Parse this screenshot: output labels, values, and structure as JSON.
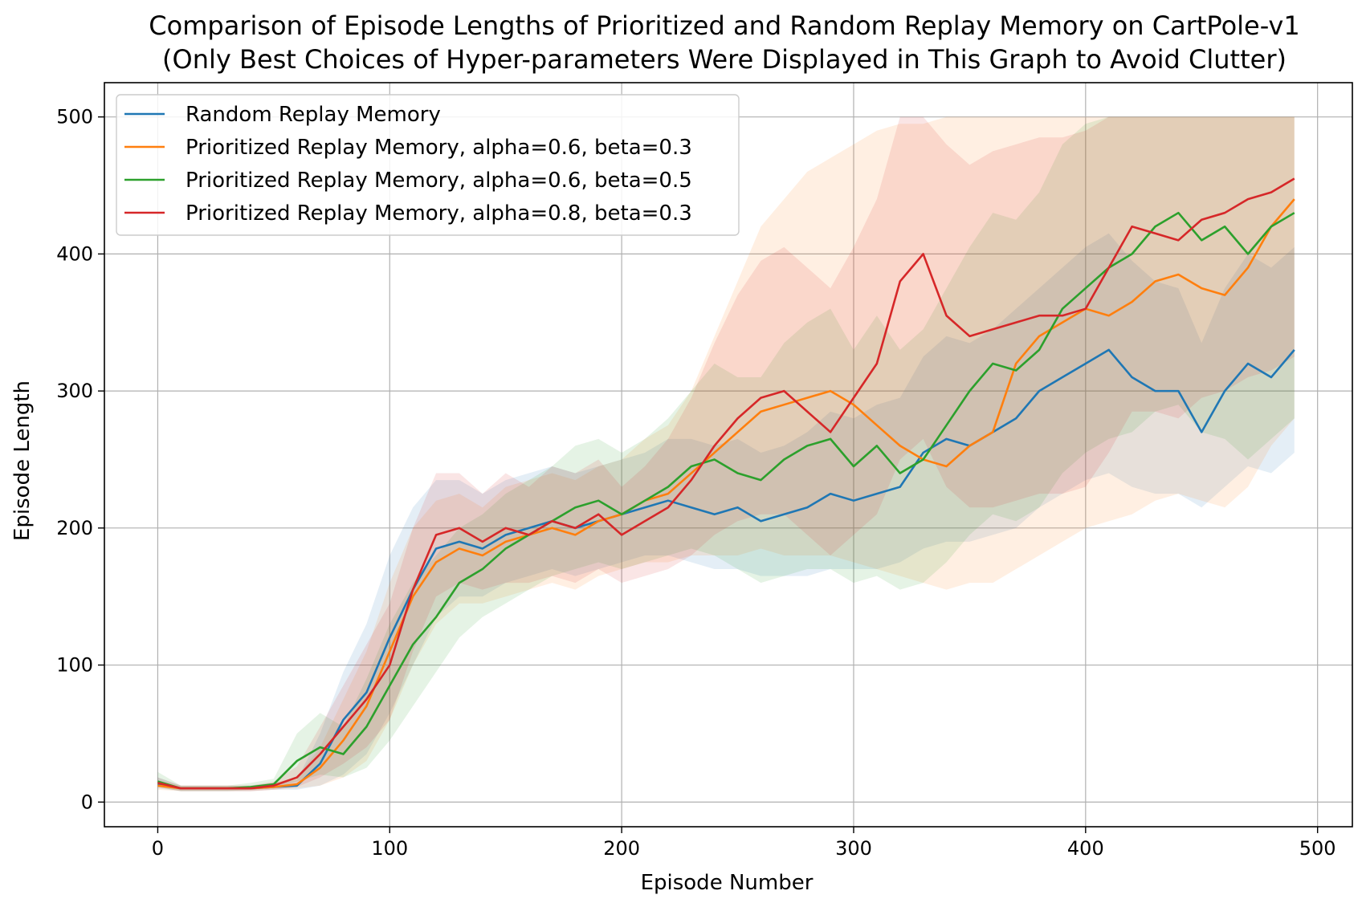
{
  "chart_data": {
    "type": "line",
    "title": "Comparison of Episode Lengths of Prioritized and Random Replay Memory on CartPole-v1",
    "subtitle": "(Only Best Choices of Hyper-parameters Were Displayed in This Graph to Avoid Clutter)",
    "xlabel": "Episode Number",
    "ylabel": "Episode Length",
    "xlim": [
      -23,
      515
    ],
    "ylim": [
      -18,
      525
    ],
    "xticks": [
      0,
      100,
      200,
      300,
      400,
      500
    ],
    "yticks": [
      0,
      100,
      200,
      300,
      400,
      500
    ],
    "grid": true,
    "legend_position": "upper-left",
    "colors": {
      "Random Replay Memory": "#1f77b4",
      "Prioritized Replay Memory, alpha=0.6, beta=0.3": "#ff7f0e",
      "Prioritized Replay Memory, alpha=0.6, beta=0.5": "#2ca02c",
      "Prioritized Replay Memory, alpha=0.8, beta=0.3": "#d62728"
    },
    "series": [
      {
        "name": "Random Replay Memory",
        "x": [
          0,
          10,
          20,
          30,
          40,
          50,
          60,
          70,
          80,
          90,
          100,
          110,
          120,
          130,
          140,
          150,
          160,
          170,
          180,
          190,
          200,
          210,
          220,
          230,
          240,
          250,
          260,
          270,
          280,
          290,
          300,
          310,
          320,
          330,
          340,
          350,
          360,
          370,
          380,
          390,
          400,
          410,
          420,
          430,
          440,
          450,
          460,
          470,
          480,
          490
        ],
        "y": [
          13,
          10,
          10,
          10,
          10,
          11,
          12,
          28,
          60,
          80,
          120,
          155,
          185,
          190,
          185,
          195,
          200,
          205,
          200,
          205,
          210,
          215,
          220,
          215,
          210,
          215,
          205,
          210,
          215,
          225,
          220,
          225,
          230,
          255,
          265,
          260,
          270,
          280,
          300,
          310,
          320,
          330,
          310,
          300,
          300,
          270,
          300,
          320,
          310,
          330
        ],
        "lower": [
          10,
          8,
          8,
          8,
          8,
          9,
          9,
          12,
          20,
          35,
          65,
          100,
          135,
          150,
          150,
          160,
          165,
          170,
          165,
          170,
          175,
          180,
          180,
          175,
          170,
          170,
          165,
          165,
          165,
          170,
          170,
          170,
          175,
          185,
          190,
          190,
          195,
          200,
          215,
          225,
          235,
          240,
          230,
          225,
          225,
          215,
          230,
          245,
          240,
          255
        ],
        "upper": [
          18,
          12,
          12,
          12,
          12,
          14,
          16,
          50,
          95,
          130,
          180,
          215,
          235,
          235,
          225,
          235,
          240,
          245,
          240,
          245,
          250,
          255,
          265,
          265,
          260,
          265,
          255,
          260,
          270,
          285,
          280,
          290,
          295,
          325,
          340,
          335,
          345,
          360,
          375,
          390,
          405,
          415,
          395,
          380,
          375,
          335,
          375,
          400,
          390,
          405
        ]
      },
      {
        "name": "Prioritized Replay Memory, alpha=0.6, beta=0.3",
        "x": [
          0,
          10,
          20,
          30,
          40,
          50,
          60,
          70,
          80,
          90,
          100,
          110,
          120,
          130,
          140,
          150,
          160,
          170,
          180,
          190,
          200,
          210,
          220,
          230,
          240,
          250,
          260,
          270,
          280,
          290,
          300,
          310,
          320,
          330,
          340,
          350,
          360,
          370,
          380,
          390,
          400,
          410,
          420,
          430,
          440,
          450,
          460,
          470,
          480,
          490
        ],
        "y": [
          12,
          10,
          10,
          10,
          10,
          11,
          13,
          25,
          45,
          70,
          110,
          150,
          175,
          185,
          180,
          190,
          195,
          200,
          195,
          205,
          210,
          220,
          225,
          240,
          255,
          270,
          285,
          290,
          295,
          300,
          290,
          275,
          260,
          250,
          245,
          260,
          270,
          320,
          340,
          350,
          360,
          355,
          365,
          380,
          385,
          375,
          370,
          390,
          420,
          440
        ],
        "lower": [
          9,
          8,
          8,
          8,
          8,
          9,
          10,
          12,
          18,
          30,
          60,
          100,
          130,
          145,
          145,
          150,
          155,
          160,
          155,
          165,
          170,
          175,
          175,
          180,
          180,
          180,
          185,
          180,
          180,
          180,
          175,
          170,
          165,
          160,
          155,
          160,
          160,
          170,
          180,
          190,
          200,
          205,
          210,
          220,
          225,
          220,
          215,
          230,
          260,
          280
        ],
        "upper": [
          16,
          12,
          12,
          12,
          12,
          14,
          18,
          40,
          75,
          110,
          160,
          200,
          220,
          225,
          215,
          230,
          235,
          240,
          235,
          245,
          250,
          265,
          275,
          300,
          340,
          380,
          420,
          440,
          460,
          470,
          480,
          490,
          495,
          495,
          500,
          500,
          500,
          500,
          500,
          500,
          500,
          500,
          500,
          500,
          500,
          500,
          500,
          500,
          500,
          500
        ]
      },
      {
        "name": "Prioritized Replay Memory, alpha=0.6, beta=0.5",
        "x": [
          0,
          10,
          20,
          30,
          40,
          50,
          60,
          70,
          80,
          90,
          100,
          110,
          120,
          130,
          140,
          150,
          160,
          170,
          180,
          190,
          200,
          210,
          220,
          230,
          240,
          250,
          260,
          270,
          280,
          290,
          300,
          310,
          320,
          330,
          340,
          350,
          360,
          370,
          380,
          390,
          400,
          410,
          420,
          430,
          440,
          450,
          460,
          470,
          480,
          490
        ],
        "y": [
          15,
          10,
          10,
          10,
          11,
          13,
          30,
          40,
          35,
          55,
          85,
          115,
          135,
          160,
          170,
          185,
          195,
          205,
          215,
          220,
          210,
          220,
          230,
          245,
          250,
          240,
          235,
          250,
          260,
          265,
          245,
          260,
          240,
          250,
          275,
          300,
          320,
          315,
          330,
          360,
          375,
          390,
          400,
          420,
          430,
          410,
          420,
          400,
          420,
          430
        ],
        "lower": [
          11,
          8,
          8,
          8,
          9,
          10,
          15,
          20,
          18,
          25,
          45,
          70,
          95,
          120,
          135,
          145,
          155,
          165,
          170,
          175,
          170,
          175,
          180,
          185,
          180,
          170,
          160,
          165,
          170,
          170,
          160,
          165,
          155,
          160,
          175,
          195,
          210,
          205,
          215,
          240,
          255,
          265,
          270,
          285,
          290,
          270,
          265,
          250,
          265,
          280
        ],
        "upper": [
          22,
          12,
          12,
          12,
          14,
          17,
          50,
          65,
          55,
          90,
          130,
          160,
          180,
          200,
          210,
          225,
          235,
          245,
          260,
          265,
          255,
          265,
          280,
          300,
          320,
          310,
          310,
          335,
          350,
          360,
          330,
          355,
          330,
          345,
          375,
          405,
          430,
          425,
          445,
          480,
          495,
          500,
          500,
          500,
          500,
          500,
          500,
          500,
          500,
          500
        ]
      },
      {
        "name": "Prioritized Replay Memory, alpha=0.8, beta=0.3",
        "x": [
          0,
          10,
          20,
          30,
          40,
          50,
          60,
          70,
          80,
          90,
          100,
          110,
          120,
          130,
          140,
          150,
          160,
          170,
          180,
          190,
          200,
          210,
          220,
          230,
          240,
          250,
          260,
          270,
          280,
          290,
          300,
          310,
          320,
          330,
          340,
          350,
          360,
          370,
          380,
          390,
          400,
          410,
          420,
          430,
          440,
          450,
          460,
          470,
          480,
          490
        ],
        "y": [
          14,
          10,
          10,
          10,
          10,
          12,
          18,
          35,
          55,
          75,
          100,
          155,
          195,
          200,
          190,
          200,
          195,
          205,
          200,
          210,
          195,
          205,
          215,
          235,
          260,
          280,
          295,
          300,
          285,
          270,
          295,
          320,
          380,
          400,
          355,
          340,
          345,
          350,
          355,
          355,
          360,
          390,
          420,
          415,
          410,
          425,
          430,
          440,
          445,
          455
        ],
        "lower": [
          11,
          8,
          8,
          8,
          8,
          9,
          11,
          18,
          28,
          40,
          60,
          110,
          150,
          160,
          155,
          160,
          160,
          165,
          160,
          170,
          160,
          165,
          170,
          180,
          195,
          205,
          210,
          210,
          195,
          180,
          195,
          210,
          250,
          265,
          230,
          215,
          215,
          220,
          225,
          225,
          230,
          255,
          285,
          285,
          280,
          295,
          300,
          310,
          315,
          325
        ],
        "upper": [
          18,
          12,
          12,
          12,
          12,
          15,
          26,
          55,
          85,
          115,
          145,
          200,
          240,
          240,
          225,
          240,
          230,
          245,
          240,
          250,
          230,
          245,
          265,
          295,
          335,
          370,
          395,
          405,
          390,
          375,
          405,
          440,
          500,
          500,
          480,
          465,
          475,
          480,
          485,
          485,
          490,
          500,
          500,
          500,
          500,
          500,
          500,
          500,
          500,
          500
        ]
      }
    ]
  }
}
